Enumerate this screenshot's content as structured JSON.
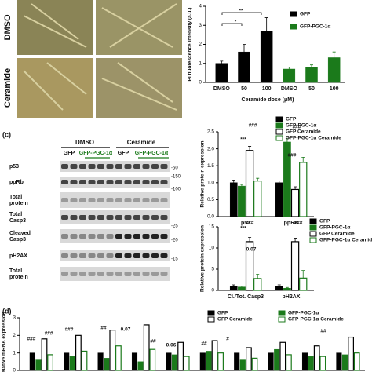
{
  "figure": {
    "photo_rows": [
      "DMSO",
      "Ceramide"
    ],
    "panel_c": "(c)",
    "panel_d": "(d)",
    "blot": {
      "groups": [
        "DMSO",
        "Ceramide"
      ],
      "lanes": [
        "GFP",
        "GFP-PGC-1α",
        "GFP",
        "GFP-PGC-1α"
      ],
      "rows": [
        [
          "p53"
        ],
        [
          "ppRb"
        ],
        [
          "Total",
          "protein"
        ],
        [
          "Total",
          "Casp3"
        ],
        [
          "Cleaved",
          "Casp3"
        ],
        [
          "pH2AX"
        ],
        [
          "Total",
          "protein"
        ]
      ],
      "markers": [
        "-50",
        "-150",
        "-100",
        "-25",
        "-20",
        "-15"
      ]
    }
  },
  "chart_data": [
    {
      "type": "bar",
      "ylabel": "PI fluorescence intensity (a.u.)",
      "xlabel": "Ceramide dose (μM)",
      "categories": [
        "DMSO",
        "50",
        "100",
        "DMSO",
        "50",
        "100"
      ],
      "series": [
        {
          "name": "GFP",
          "color": "#000000",
          "hollow": false,
          "values": [
            1.0,
            1.6,
            2.7,
            null,
            null,
            null
          ],
          "errors": [
            0.12,
            0.4,
            0.7,
            null,
            null,
            null
          ]
        },
        {
          "name": "GFP-PGC-1α",
          "color": "#1b7a1b",
          "hollow": false,
          "values": [
            null,
            null,
            null,
            0.7,
            0.8,
            1.3
          ],
          "errors": [
            null,
            null,
            null,
            0.1,
            0.12,
            0.3
          ]
        }
      ],
      "ylim": [
        0,
        4
      ],
      "yticks": [
        0,
        1,
        2,
        3,
        4
      ],
      "annotations": [
        "*",
        "**"
      ]
    },
    {
      "type": "bar",
      "ylabel": "Relative protein expression",
      "categories": [
        "p53",
        "ppRB"
      ],
      "series": [
        {
          "name": "GFP",
          "color": "#000000",
          "hollow": false,
          "values": [
            1.0,
            1.0
          ],
          "errors": [
            0.08,
            0.05
          ]
        },
        {
          "name": "GFP-PGC-1α",
          "color": "#1b7a1b",
          "hollow": false,
          "values": [
            0.9,
            2.2
          ],
          "errors": [
            0.05,
            0.1
          ]
        },
        {
          "name": "GFP Ceramide",
          "color": "#000000",
          "hollow": true,
          "values": [
            1.95,
            0.8
          ],
          "errors": [
            0.12,
            0.08
          ]
        },
        {
          "name": "GFP-PGC-1α Ceramide",
          "color": "#1b7a1b",
          "hollow": true,
          "values": [
            1.05,
            1.6
          ],
          "errors": [
            0.08,
            0.15
          ]
        }
      ],
      "ylim": [
        0,
        2.5
      ],
      "yticks": [
        {
          "value": 0,
          "label": "0.0"
        },
        {
          "value": 0.5,
          "label": "0.5"
        },
        {
          "value": 1,
          "label": "1.0"
        },
        {
          "value": 1.5,
          "label": "1.5"
        },
        {
          "value": 2,
          "label": "2.0"
        },
        {
          "value": 2.5,
          "label": "2.5"
        }
      ],
      "annotations": [
        "###",
        "***",
        "###",
        "###"
      ]
    },
    {
      "type": "bar",
      "ylabel": "Relative protein expression",
      "categories": [
        "Cl./Tot. Casp3",
        "pH2AX"
      ],
      "series": [
        {
          "name": "GFP",
          "color": "#000000",
          "hollow": false,
          "values": [
            1.0,
            1.0
          ],
          "errors": [
            0.3,
            0.3
          ]
        },
        {
          "name": "GFP-PGC-1α",
          "color": "#1b7a1b",
          "hollow": false,
          "values": [
            0.8,
            0.5
          ],
          "errors": [
            0.2,
            0.2
          ]
        },
        {
          "name": "GFP Ceramide",
          "color": "#000000",
          "hollow": true,
          "values": [
            11.5,
            11.5
          ],
          "errors": [
            1.0,
            0.8
          ]
        },
        {
          "name": "GFP-PGC-1α Ceramide",
          "color": "#1b7a1b",
          "hollow": true,
          "values": [
            2.8,
            2.9
          ],
          "errors": [
            1.0,
            1.8
          ]
        }
      ],
      "ylim": [
        0,
        15
      ],
      "yticks": [
        0,
        5,
        10,
        15
      ],
      "annotations": [
        "###",
        "***",
        "0.07",
        "###"
      ]
    },
    {
      "type": "bar",
      "ylabel": "Relative mRNA expression",
      "categories": [
        null,
        null,
        null,
        null,
        null,
        null,
        null,
        null,
        null,
        null
      ],
      "series": [
        {
          "name": "GFP",
          "color": "#000000",
          "hollow": false,
          "values": [
            1.0,
            1.0,
            1.0,
            1.0,
            1.0,
            1.0,
            1.0,
            1.0,
            1.0,
            1.0
          ]
        },
        {
          "name": "GFP-PGC-1α",
          "color": "#1b7a1b",
          "hollow": false,
          "values": [
            0.6,
            0.8,
            0.7,
            0.5,
            0.9,
            1.1,
            0.6,
            1.2,
            0.8,
            0.9
          ]
        },
        {
          "name": "GFP Ceramide",
          "color": "#000000",
          "hollow": true,
          "values": [
            1.8,
            2.0,
            2.3,
            2.6,
            1.6,
            1.7,
            1.3,
            1.6,
            1.4,
            1.9
          ]
        },
        {
          "name": "GFP-PGC-1α Ceramide",
          "color": "#1b7a1b",
          "hollow": true,
          "values": [
            0.9,
            1.1,
            1.4,
            1.2,
            0.8,
            1.0,
            0.7,
            0.9,
            0.8,
            1.0
          ]
        }
      ],
      "ylim": [
        0,
        3
      ],
      "yticks": [
        0,
        1,
        2,
        3
      ],
      "annotations": [
        "###",
        "###",
        "###",
        "##",
        "0.07",
        "##",
        "0.06",
        "##",
        "#",
        "##"
      ]
    }
  ]
}
